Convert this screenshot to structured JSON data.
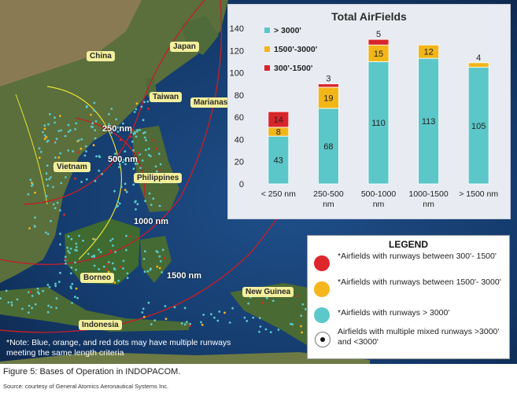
{
  "map": {
    "regions": {
      "china": "China",
      "japan": "Japan",
      "taiwan": "Taiwan",
      "marianas": "Marianas",
      "vietnam": "Vietnam",
      "philippines": "Philippines",
      "borneo": "Borneo",
      "new_guinea": "New Guinea",
      "indonesia": "Indonesia"
    },
    "distances": {
      "d250": "250 nm",
      "d500": "500 nm",
      "d1000": "1000 nm",
      "d1500": "1500 nm"
    },
    "note": "*Note: Blue, orange, and red dots may have multiple runways meeting the same length criteria"
  },
  "chart_data": {
    "type": "bar",
    "stacked": true,
    "title": "Total AirFields",
    "categories": [
      "< 250 nm",
      "250-500 nm",
      "500-1000 nm",
      "1000-1500 nm",
      "> 1500 nm"
    ],
    "series": [
      {
        "name": "> 3000'",
        "color": "#5cc7c9",
        "values": [
          43,
          68,
          110,
          113,
          105
        ]
      },
      {
        "name": "1500'-3000'",
        "color": "#f2b617",
        "values": [
          8,
          19,
          15,
          12,
          4
        ]
      },
      {
        "name": "300'-1500'",
        "color": "#d8242b",
        "values": [
          14,
          3,
          5,
          0,
          0
        ]
      }
    ],
    "ylim": [
      0,
      140
    ],
    "yticks": [
      0,
      20,
      40,
      60,
      80,
      100,
      120,
      140
    ],
    "xlabel": "",
    "ylabel": "",
    "legend_position": "top-left",
    "grid": false
  },
  "legend": {
    "title": "LEGEND",
    "items": [
      {
        "label": "*Airfields with runways between 300'- 1500'",
        "color": "#e0262d"
      },
      {
        "label": "*Airfields with runways between 1500'- 3000'",
        "color": "#f5b51c"
      },
      {
        "label": "*Airfields with runways > 3000'",
        "color": "#5cc8c9"
      },
      {
        "label": "Airfields with multiple mixed runways >3000' and <3000'",
        "color": "#111111"
      }
    ]
  },
  "caption": "Figure 5: Bases of Operation in INDOPACOM.",
  "source": "Source: courtesy of General Atomics Aeronautical Systems Inc."
}
